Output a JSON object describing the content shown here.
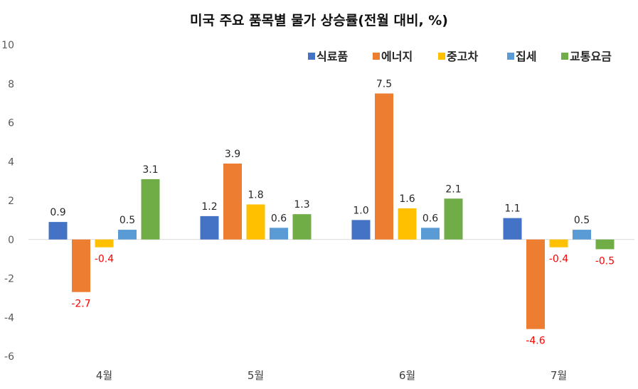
{
  "chart_data": {
    "type": "bar",
    "title": "미국 주요 품목별 물가 상승률(전월 대비, %)",
    "xlabel": "",
    "ylabel": "",
    "categories": [
      "4월",
      "5월",
      "6월",
      "7월"
    ],
    "ylim": [
      -6,
      10
    ],
    "yticks": [
      10,
      8,
      6,
      4,
      2,
      0,
      -2,
      -4,
      -6
    ],
    "grid": false,
    "legend_position": "top-right",
    "series": [
      {
        "name": "식료품",
        "color": "#4472C4",
        "values": [
          0.9,
          1.2,
          1.0,
          1.1
        ]
      },
      {
        "name": "에너지",
        "color": "#ED7D31",
        "values": [
          -2.7,
          3.9,
          7.5,
          -4.6
        ]
      },
      {
        "name": "중고차",
        "color": "#FFC000",
        "values": [
          -0.4,
          1.8,
          1.6,
          -0.4
        ]
      },
      {
        "name": "집세",
        "color": "#5B9BD5",
        "values": [
          0.5,
          0.6,
          0.6,
          0.5
        ]
      },
      {
        "name": "교통요금",
        "color": "#70AD47",
        "values": [
          3.1,
          1.3,
          2.1,
          -0.5
        ]
      }
    ],
    "label_colors": {
      "positive": "#262626",
      "negative": "#FF0000"
    }
  }
}
